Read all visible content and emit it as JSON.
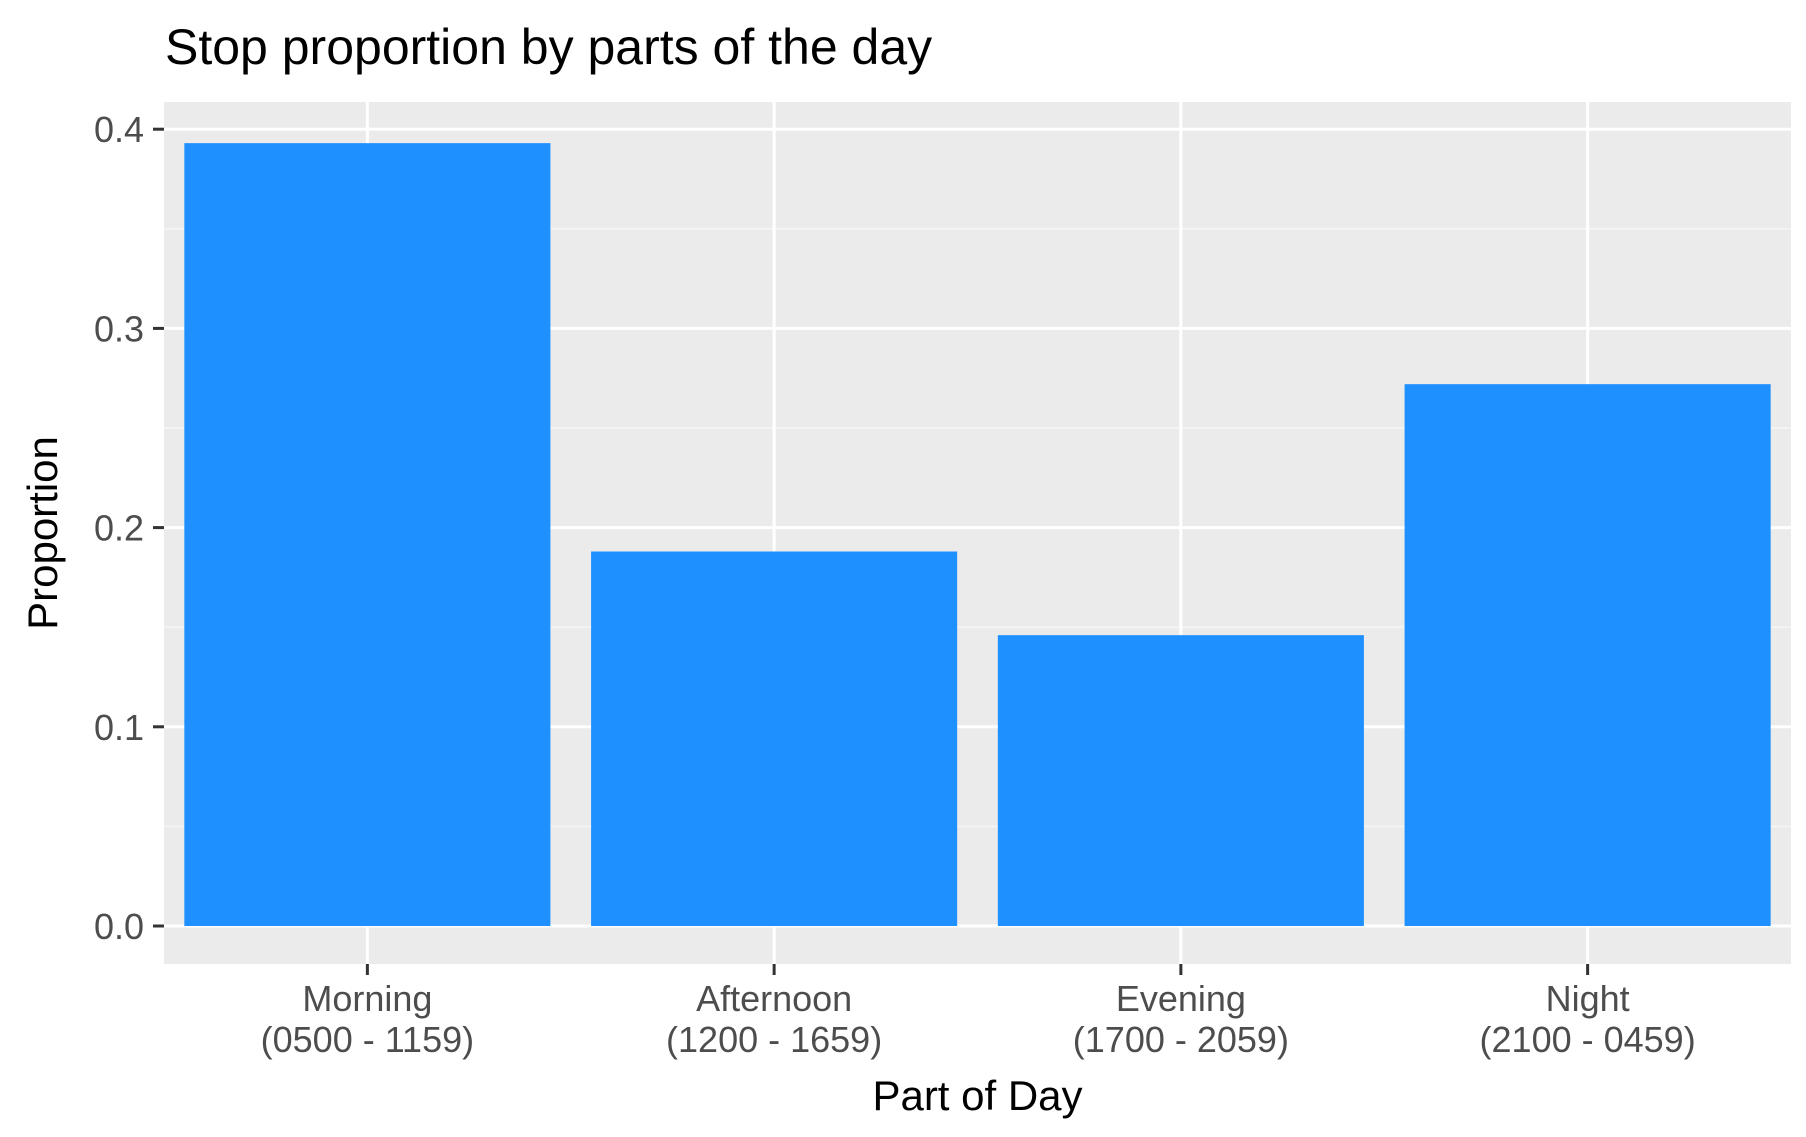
{
  "chart_data": {
    "type": "bar",
    "title": "Stop proportion by parts of the day",
    "xlabel": "Part of Day",
    "ylabel": "Proportion",
    "categories": [
      [
        "Morning",
        "(0500 - 1159)"
      ],
      [
        "Afternoon",
        "(1200 - 1659)"
      ],
      [
        "Evening",
        "(1700 - 2059)"
      ],
      [
        "Night",
        "(2100 - 0459)"
      ]
    ],
    "values": [
      0.393,
      0.188,
      0.146,
      0.272
    ],
    "yticks": [
      "0.0",
      "0.1",
      "0.2",
      "0.3",
      "0.4"
    ],
    "ylim": [
      -0.019,
      0.412
    ],
    "grid": true,
    "legend": "none",
    "colors": {
      "bar": "#1E90FF",
      "panel": "#EBEBEB",
      "grid_major": "#FFFFFF",
      "grid_minor": "#F4F4F4",
      "tick_text": "#4D4D4D",
      "tick_mark": "#333333",
      "title_text": "#000000"
    }
  }
}
